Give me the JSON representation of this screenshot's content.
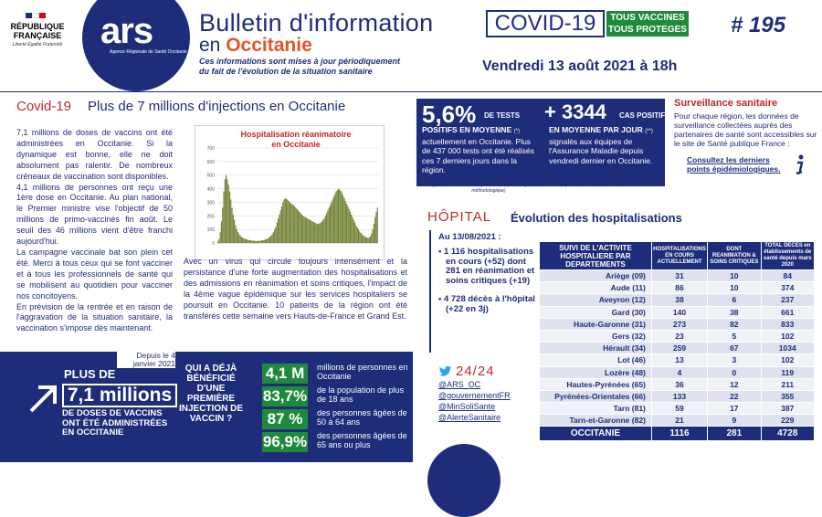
{
  "header": {
    "republique": "RÉPUBLIQUE FRANÇAISE",
    "motto": "Liberté Égalité Fraternité",
    "ars_logo": "ars",
    "ars_sub": "Agence Régionale de Santé Occitanie",
    "title_line1": "Bulletin d'information",
    "title_line2_prefix": "en",
    "title_line2_region": "Occitanie",
    "covid": "COVID-19",
    "vaccines_line1": "TOUS VACCINES",
    "vaccines_line2": "TOUS PROTEGES",
    "number": "# 195",
    "note": "Ces informations sont mises à jour périodiquement du fait de l'évolution de la situation sanitaire",
    "date": "Vendredi 13 août 2021 à 18h"
  },
  "left": {
    "section_tag": "Covid-19",
    "section_title": "Plus de 7 millions d'injections en Occitanie",
    "paragraphs": [
      "7,1 millions de doses de vaccins ont été administrées en Occitanie. Si la dynamique est bonne, elle ne doit absolument pas ralentir. De nombreux créneaux de vaccination sont disponibles.",
      "4,1 millions de personnes ont reçu une 1ère dose en Occitanie. Au plan national, le Premier ministre vise l'objectif de 50 millions de primo-vaccinés fin août. Le seuil des 46 millions vient d'être franchi aujourd'hui.",
      "La campagne vaccinale bat son plein cet été. Merci à tous ceux qui se font vacciner et à tous les professionnels de santé qui se mobilisent au quotidien pour vacciner nos concitoyens.",
      "En prévision de la rentrée et en raison de l'aggravation de la situation sanitaire, la vaccination s'impose dès maintenant."
    ],
    "chart_caption": "Avec un virus qui circule toujours intensément et la persistance d'une forte augmentation des hospitalisations et des admissions en réanimation et soins critiques, l'impact de la 4ème vague épidémique sur les services hospitaliers se poursuit en Occitanie. 10 patients de la région ont été transférés cette semaine vers Hauts-de-France et Grand Est."
  },
  "chart_data": {
    "type": "bar",
    "title": "Hospitalisation réanimatoire en Occitanie",
    "ylim": [
      0,
      700
    ],
    "yticks": [
      0,
      100,
      200,
      300,
      400,
      500,
      600,
      700
    ],
    "grid": true,
    "values": [
      10,
      30,
      80,
      160,
      260,
      380,
      470,
      500,
      470,
      430,
      380,
      320,
      260,
      210,
      170,
      130,
      100,
      80,
      65,
      55,
      45,
      40,
      35,
      30,
      28,
      25,
      22,
      20,
      18,
      18,
      17,
      16,
      15,
      15,
      15,
      16,
      17,
      18,
      20,
      22,
      25,
      28,
      32,
      38,
      45,
      55,
      65,
      80,
      100,
      120,
      150,
      180,
      210,
      240,
      270,
      300,
      320,
      330,
      325,
      320,
      310,
      300,
      290,
      285,
      280,
      270,
      260,
      250,
      240,
      230,
      220,
      210,
      200,
      195,
      190,
      185,
      180,
      175,
      170,
      165,
      160,
      155,
      150,
      145,
      140,
      140,
      145,
      150,
      160,
      170,
      180,
      200,
      220,
      240,
      260,
      280,
      300,
      320,
      340,
      360,
      380,
      390,
      400,
      395,
      385,
      370,
      350,
      330,
      310,
      290,
      270,
      250,
      230,
      210,
      190,
      170,
      150,
      130,
      115,
      100,
      85,
      75,
      65,
      55,
      50,
      45,
      40,
      38,
      40,
      50,
      70,
      100,
      140,
      190,
      230,
      260
    ],
    "colors": {
      "bar": "#6b7f2e",
      "title": "#c0272d"
    }
  },
  "band": {
    "since": "Depuis le 4 janvier 2021",
    "plus_de": "PLUS DE",
    "big_value": "7,1 millions",
    "doses_line": "DE DOSES DE VACCINS ONT ÉTÉ ADMINISTRÉES EN OCCITANIE",
    "question": "QUI A DÉJÀ BÉNÉFICIÉ D'UNE PREMIÈRE INJECTION DE VACCIN ?",
    "stats": [
      {
        "value": "4,1 M",
        "label": "millions de personnes en Occitanie"
      },
      {
        "value": "83,7%",
        "label": "de la population de plus de 18 ans"
      },
      {
        "value": "87 %",
        "label": "des personnes âgées de 50 à 64 ans"
      },
      {
        "value": "96,9%",
        "label": "des personnes âgées de 65 ans ou plus"
      }
    ]
  },
  "kpi": {
    "rate": "5,6%",
    "rate_suffix": "DE TESTS",
    "rate_text_bold": "POSITIFS EN MOYENNE",
    "rate_ref": "(*)",
    "rate_text": "actuellement en Occitanie. Plus de 437 000 tests ont été réalisés ces 7 derniers jours dans la région.",
    "cases": "+ 3344",
    "cases_suffix": "CAS POSITIFS",
    "cases_text_bold": "EN MOYENNE PAR JOUR",
    "cases_ref": "(**)",
    "cases_text": "signalés aux équipes de l'Assurance Maladie depuis vendredi dernier en Occitanie.",
    "source1": "(*) Source : Santé Publique France (après réajustement méthodologique)",
    "source2": "(**) Source : Assurance Maladie"
  },
  "surveillance": {
    "title": "Surveillance sanitaire",
    "text": "Pour chaque région, les données de surveillance collectées auprès des partenaires de santé sont accessibles sur le site de Santé publique France :",
    "link": "Consultez les derniers points épidémiologiques."
  },
  "hospital": {
    "tag": "HÔPITAL",
    "title": "Évolution des hospitalisations",
    "date": "Au 13/08/2021 :",
    "bullet1": "• 1 116 hospitalisations en cours (+52) dont 281 en réanimation et soins critiques (+19)",
    "bullet2": "• 4 728 décès à l'hôpital (+22 en 3j)"
  },
  "twitter": {
    "hours": "24/24",
    "accounts": [
      "@ARS_OC",
      "@gouvernementFR",
      "@MinSoliSante",
      "@AlerteSanitaire"
    ]
  },
  "table": {
    "headers": [
      "SUIVI DE L'ACTIVITE HOSPITALIERE PAR DEPARTEMENTS",
      "HOSPITALISATIONS EN COURS ACTUELLEMENT",
      "DONT REANIMATION & SOINS CRITIQUES",
      "TOTAL DECES en établissements de santé depuis mars 2020"
    ],
    "rows": [
      [
        "Ariège (09)",
        "31",
        "10",
        "84"
      ],
      [
        "Aude (11)",
        "86",
        "10",
        "374"
      ],
      [
        "Aveyron (12)",
        "38",
        "6",
        "237"
      ],
      [
        "Gard (30)",
        "140",
        "38",
        "661"
      ],
      [
        "Haute-Garonne (31)",
        "273",
        "82",
        "833"
      ],
      [
        "Gers (32)",
        "23",
        "5",
        "102"
      ],
      [
        "Hérault (34)",
        "259",
        "67",
        "1034"
      ],
      [
        "Lot (46)",
        "13",
        "3",
        "102"
      ],
      [
        "Lozère (48)",
        "4",
        "0",
        "119"
      ],
      [
        "Hautes-Pyrénées (65)",
        "36",
        "12",
        "211"
      ],
      [
        "Pyrénées-Orientales (66)",
        "133",
        "22",
        "355"
      ],
      [
        "Tarn (81)",
        "59",
        "17",
        "387"
      ],
      [
        "Tarn-et-Garonne (82)",
        "21",
        "9",
        "229"
      ]
    ],
    "total": [
      "OCCITANIE",
      "1116",
      "281",
      "4728"
    ]
  }
}
